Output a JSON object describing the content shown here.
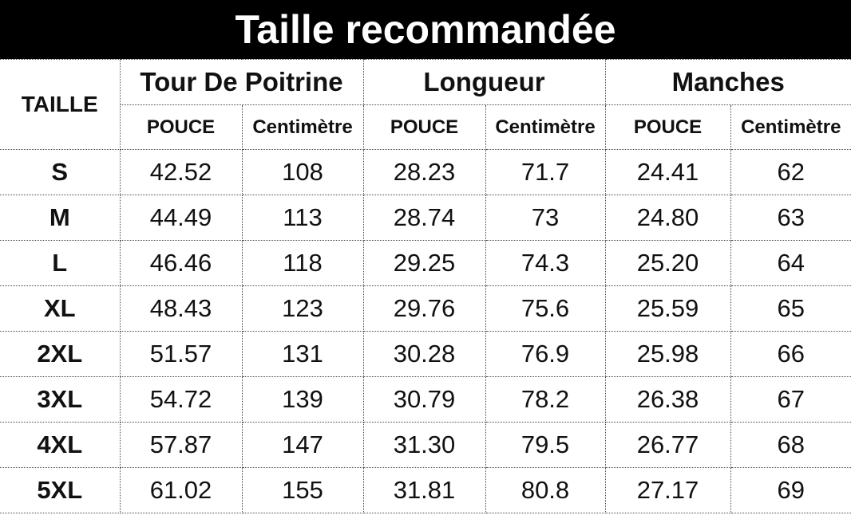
{
  "banner": {
    "title": "Taille recommandée"
  },
  "table": {
    "size_col_header": "TAILLE",
    "groups": [
      {
        "label": "Tour De Poitrine"
      },
      {
        "label": "Longueur"
      },
      {
        "label": "Manches"
      }
    ],
    "unit_headers": [
      "POUCE",
      "Centimètre",
      "POUCE",
      "Centimètre",
      "POUCE",
      "Centimètre"
    ],
    "rows": [
      {
        "size": "S",
        "values": [
          "42.52",
          "108",
          "28.23",
          "71.7",
          "24.41",
          "62"
        ]
      },
      {
        "size": "M",
        "values": [
          "44.49",
          "113",
          "28.74",
          "73",
          "24.80",
          "63"
        ]
      },
      {
        "size": "L",
        "values": [
          "46.46",
          "118",
          "29.25",
          "74.3",
          "25.20",
          "64"
        ]
      },
      {
        "size": "XL",
        "values": [
          "48.43",
          "123",
          "29.76",
          "75.6",
          "25.59",
          "65"
        ]
      },
      {
        "size": "2XL",
        "values": [
          "51.57",
          "131",
          "30.28",
          "76.9",
          "25.98",
          "66"
        ]
      },
      {
        "size": "3XL",
        "values": [
          "54.72",
          "139",
          "30.79",
          "78.2",
          "26.38",
          "67"
        ]
      },
      {
        "size": "4XL",
        "values": [
          "57.87",
          "147",
          "31.30",
          "79.5",
          "26.77",
          "68"
        ]
      },
      {
        "size": "5XL",
        "values": [
          "61.02",
          "155",
          "31.81",
          "80.8",
          "27.17",
          "69"
        ]
      }
    ]
  },
  "colors": {
    "banner_bg": "#000000",
    "banner_text": "#ffffff",
    "table_text": "#111111",
    "border": "#4a4a4a"
  }
}
